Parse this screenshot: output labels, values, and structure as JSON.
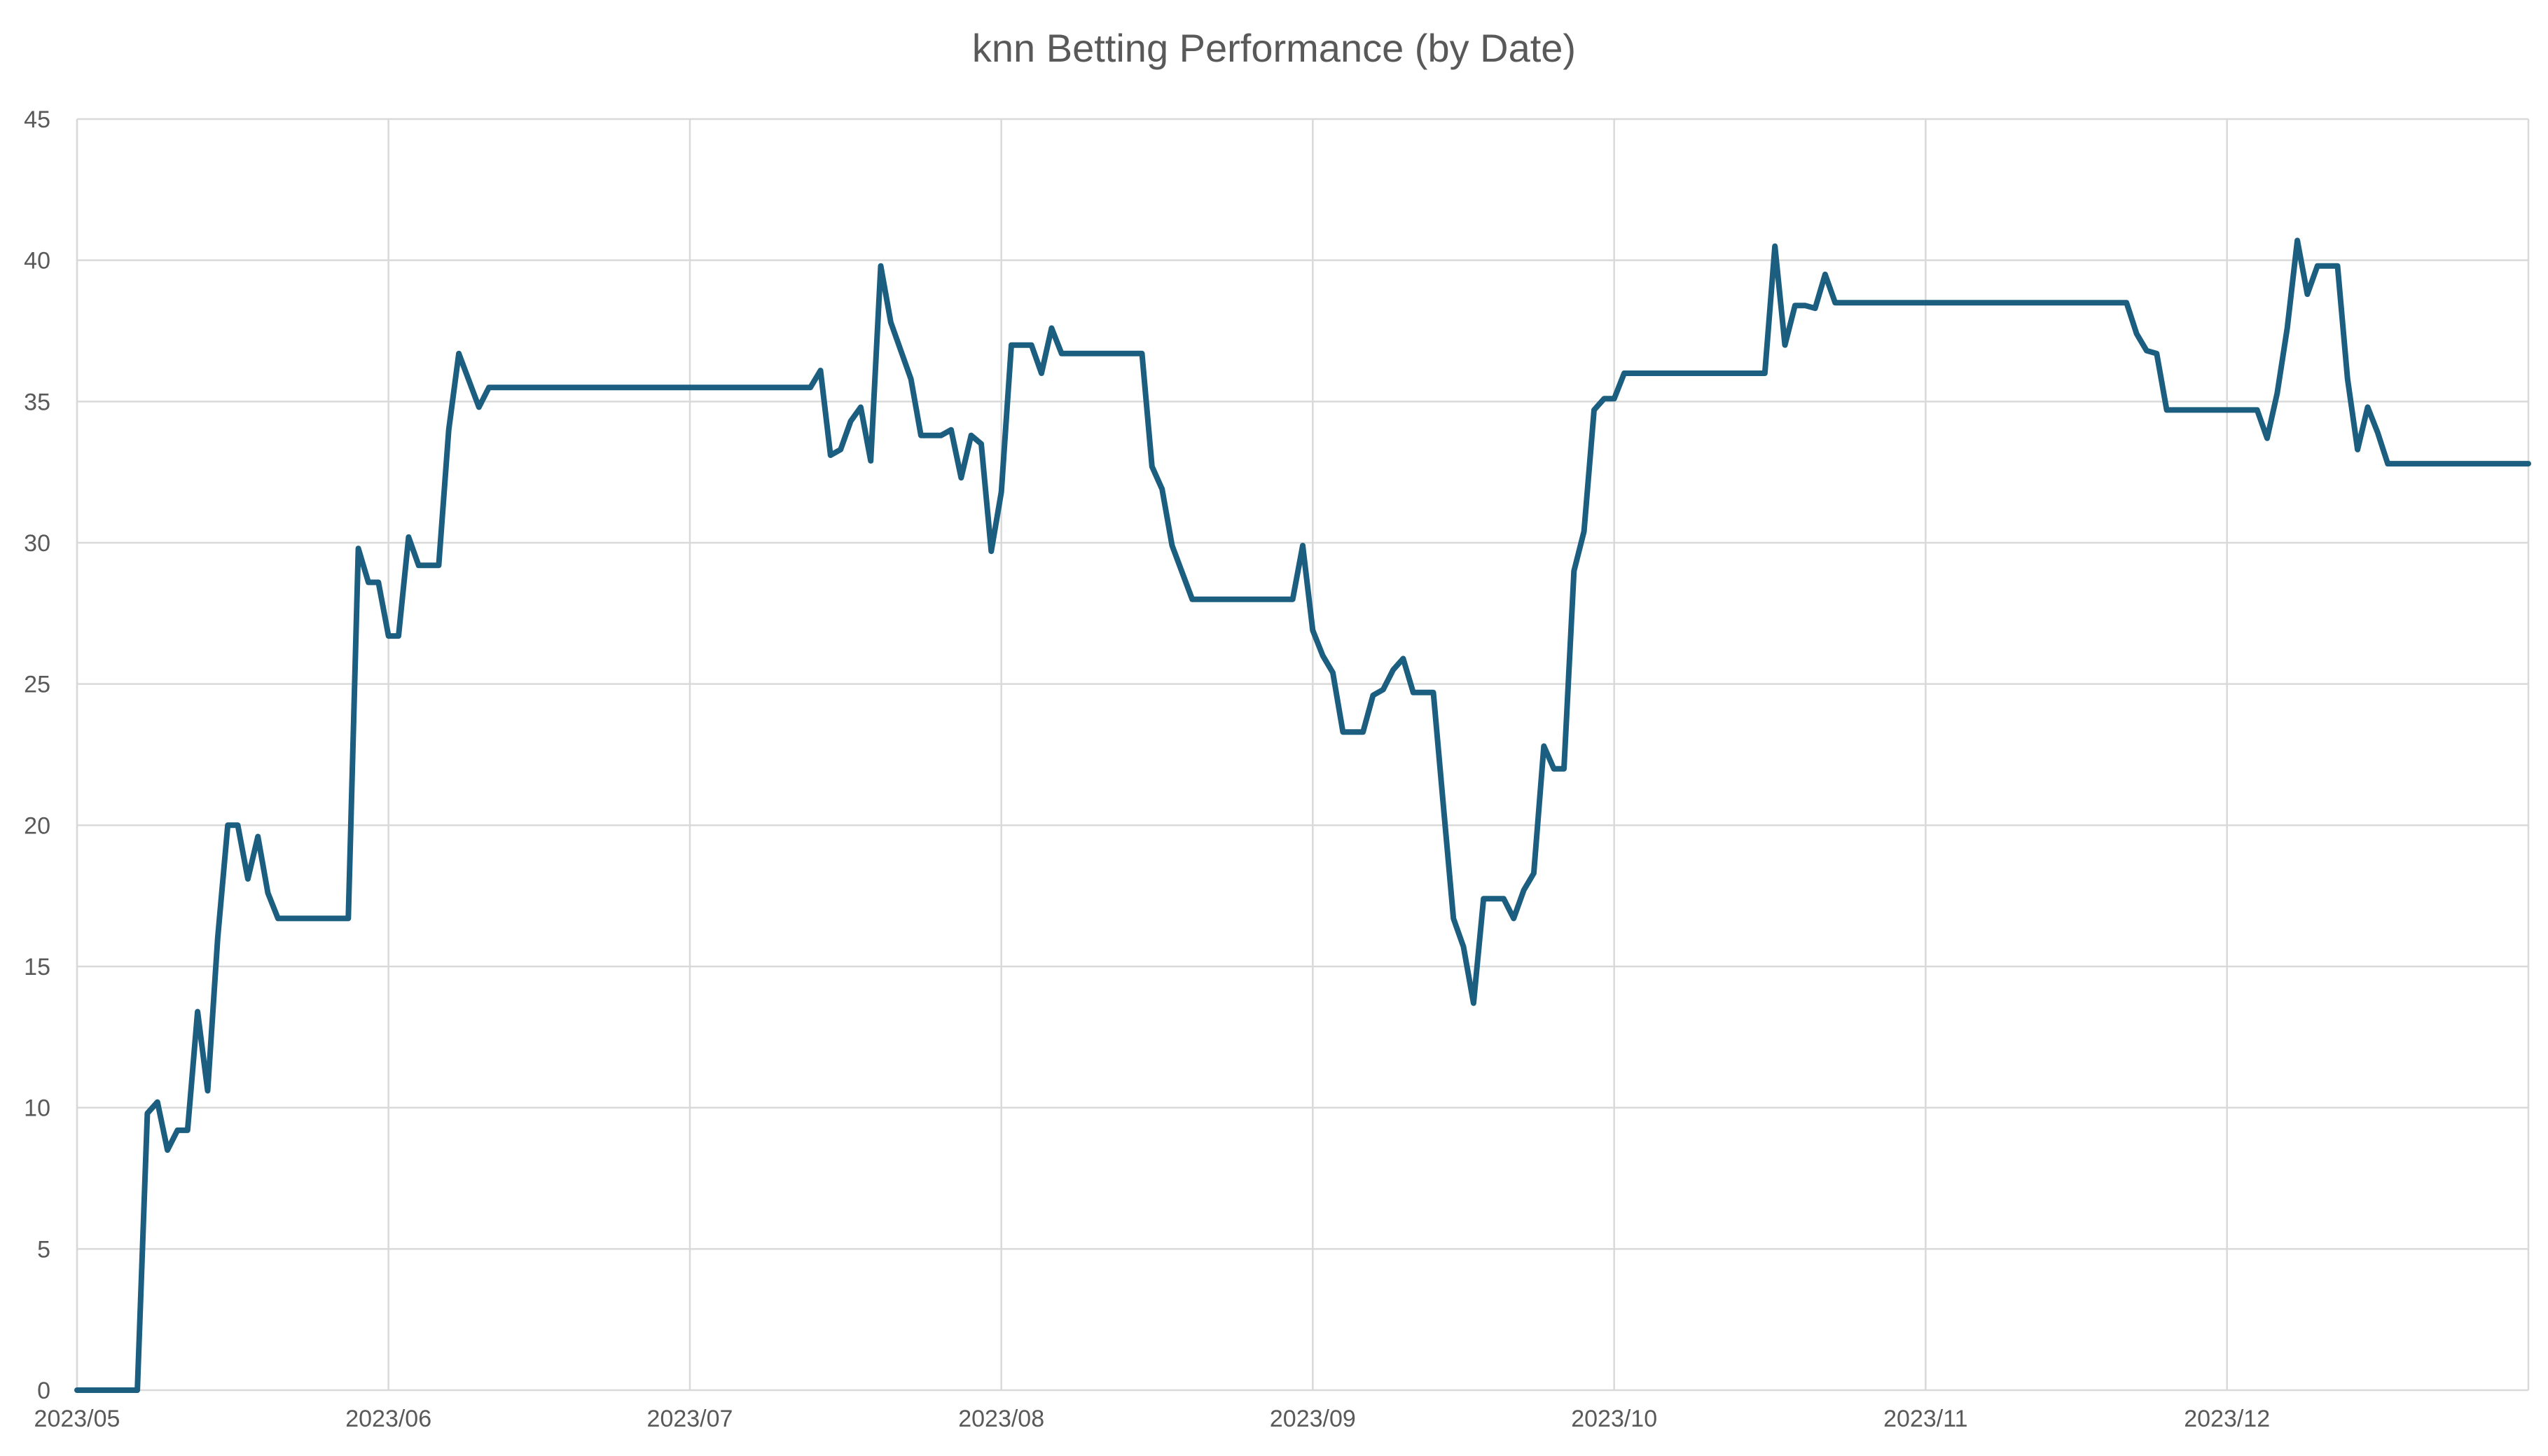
{
  "chart_data": {
    "type": "line",
    "title": "knn Betting Performance (by Date)",
    "xlabel": "",
    "ylabel": "",
    "x_axis": {
      "type": "date",
      "range": [
        "2023-05-01",
        "2023-12-31"
      ],
      "ticks": [
        {
          "date": "2023-05-01",
          "label": "2023/05"
        },
        {
          "date": "2023-06-01",
          "label": "2023/06"
        },
        {
          "date": "2023-07-01",
          "label": "2023/07"
        },
        {
          "date": "2023-08-01",
          "label": "2023/08"
        },
        {
          "date": "2023-09-01",
          "label": "2023/09"
        },
        {
          "date": "2023-10-01",
          "label": "2023/10"
        },
        {
          "date": "2023-11-01",
          "label": "2023/11"
        },
        {
          "date": "2023-12-01",
          "label": "2023/12"
        }
      ]
    },
    "ylim": [
      0,
      45
    ],
    "y_ticks": [
      0,
      5,
      10,
      15,
      20,
      25,
      30,
      35,
      40,
      45
    ],
    "grid": true,
    "legend": "none",
    "series": [
      {
        "color": "#1b5e7f",
        "points": [
          [
            "2023-05-01",
            0
          ],
          [
            "2023-05-07",
            0
          ],
          [
            "2023-05-08",
            9.8
          ],
          [
            "2023-05-09",
            10.2
          ],
          [
            "2023-05-10",
            8.5
          ],
          [
            "2023-05-11",
            9.2
          ],
          [
            "2023-05-12",
            9.2
          ],
          [
            "2023-05-13",
            13.4
          ],
          [
            "2023-05-14",
            10.6
          ],
          [
            "2023-05-15",
            16.0
          ],
          [
            "2023-05-16",
            20.0
          ],
          [
            "2023-05-17",
            20.0
          ],
          [
            "2023-05-18",
            18.1
          ],
          [
            "2023-05-19",
            19.6
          ],
          [
            "2023-05-20",
            17.6
          ],
          [
            "2023-05-21",
            16.7
          ],
          [
            "2023-05-28",
            16.7
          ],
          [
            "2023-05-29",
            29.8
          ],
          [
            "2023-05-30",
            28.6
          ],
          [
            "2023-05-31",
            28.6
          ],
          [
            "2023-06-01",
            26.7
          ],
          [
            "2023-06-02",
            26.7
          ],
          [
            "2023-06-03",
            30.2
          ],
          [
            "2023-06-04",
            29.2
          ],
          [
            "2023-06-06",
            29.2
          ],
          [
            "2023-06-07",
            34.0
          ],
          [
            "2023-06-08",
            36.7
          ],
          [
            "2023-06-10",
            34.8
          ],
          [
            "2023-06-11",
            35.5
          ],
          [
            "2023-07-13",
            35.5
          ],
          [
            "2023-07-14",
            36.1
          ],
          [
            "2023-07-15",
            33.1
          ],
          [
            "2023-07-16",
            33.3
          ],
          [
            "2023-07-17",
            34.3
          ],
          [
            "2023-07-18",
            34.8
          ],
          [
            "2023-07-19",
            32.9
          ],
          [
            "2023-07-20",
            39.8
          ],
          [
            "2023-07-21",
            37.8
          ],
          [
            "2023-07-23",
            35.8
          ],
          [
            "2023-07-24",
            33.8
          ],
          [
            "2023-07-26",
            33.8
          ],
          [
            "2023-07-27",
            34.0
          ],
          [
            "2023-07-28",
            32.3
          ],
          [
            "2023-07-29",
            33.8
          ],
          [
            "2023-07-30",
            33.5
          ],
          [
            "2023-07-31",
            29.7
          ],
          [
            "2023-08-01",
            31.8
          ],
          [
            "2023-08-02",
            37.0
          ],
          [
            "2023-08-04",
            37.0
          ],
          [
            "2023-08-05",
            36.0
          ],
          [
            "2023-08-06",
            37.6
          ],
          [
            "2023-08-07",
            36.7
          ],
          [
            "2023-08-15",
            36.7
          ],
          [
            "2023-08-16",
            32.7
          ],
          [
            "2023-08-17",
            31.9
          ],
          [
            "2023-08-18",
            29.9
          ],
          [
            "2023-08-20",
            28.0
          ],
          [
            "2023-08-30",
            28.0
          ],
          [
            "2023-08-31",
            29.9
          ],
          [
            "2023-09-01",
            26.9
          ],
          [
            "2023-09-02",
            26.0
          ],
          [
            "2023-09-03",
            25.4
          ],
          [
            "2023-09-04",
            23.3
          ],
          [
            "2023-09-06",
            23.3
          ],
          [
            "2023-09-07",
            24.6
          ],
          [
            "2023-09-08",
            24.8
          ],
          [
            "2023-09-09",
            25.5
          ],
          [
            "2023-09-10",
            25.9
          ],
          [
            "2023-09-11",
            24.7
          ],
          [
            "2023-09-13",
            24.7
          ],
          [
            "2023-09-14",
            20.7
          ],
          [
            "2023-09-15",
            16.7
          ],
          [
            "2023-09-16",
            15.7
          ],
          [
            "2023-09-17",
            13.7
          ],
          [
            "2023-09-18",
            17.4
          ],
          [
            "2023-09-20",
            17.4
          ],
          [
            "2023-09-21",
            16.7
          ],
          [
            "2023-09-22",
            17.7
          ],
          [
            "2023-09-23",
            18.3
          ],
          [
            "2023-09-24",
            22.8
          ],
          [
            "2023-09-25",
            22.0
          ],
          [
            "2023-09-26",
            22.0
          ],
          [
            "2023-09-27",
            29.0
          ],
          [
            "2023-09-28",
            30.4
          ],
          [
            "2023-09-29",
            34.7
          ],
          [
            "2023-09-30",
            35.1
          ],
          [
            "2023-10-01",
            35.1
          ],
          [
            "2023-10-02",
            36.0
          ],
          [
            "2023-10-16",
            36.0
          ],
          [
            "2023-10-17",
            40.5
          ],
          [
            "2023-10-18",
            37.0
          ],
          [
            "2023-10-19",
            38.4
          ],
          [
            "2023-10-20",
            38.4
          ],
          [
            "2023-10-21",
            38.3
          ],
          [
            "2023-10-22",
            39.5
          ],
          [
            "2023-10-23",
            38.5
          ],
          [
            "2023-11-21",
            38.5
          ],
          [
            "2023-11-22",
            37.4
          ],
          [
            "2023-11-23",
            36.8
          ],
          [
            "2023-11-24",
            36.7
          ],
          [
            "2023-11-25",
            34.7
          ],
          [
            "2023-12-04",
            34.7
          ],
          [
            "2023-12-05",
            33.7
          ],
          [
            "2023-12-06",
            35.3
          ],
          [
            "2023-12-07",
            37.6
          ],
          [
            "2023-12-08",
            40.7
          ],
          [
            "2023-12-09",
            38.8
          ],
          [
            "2023-12-10",
            39.8
          ],
          [
            "2023-12-12",
            39.8
          ],
          [
            "2023-12-13",
            35.8
          ],
          [
            "2023-12-14",
            33.3
          ],
          [
            "2023-12-15",
            34.8
          ],
          [
            "2023-12-16",
            33.9
          ],
          [
            "2023-12-17",
            32.8
          ],
          [
            "2023-12-31",
            32.8
          ]
        ]
      }
    ]
  }
}
